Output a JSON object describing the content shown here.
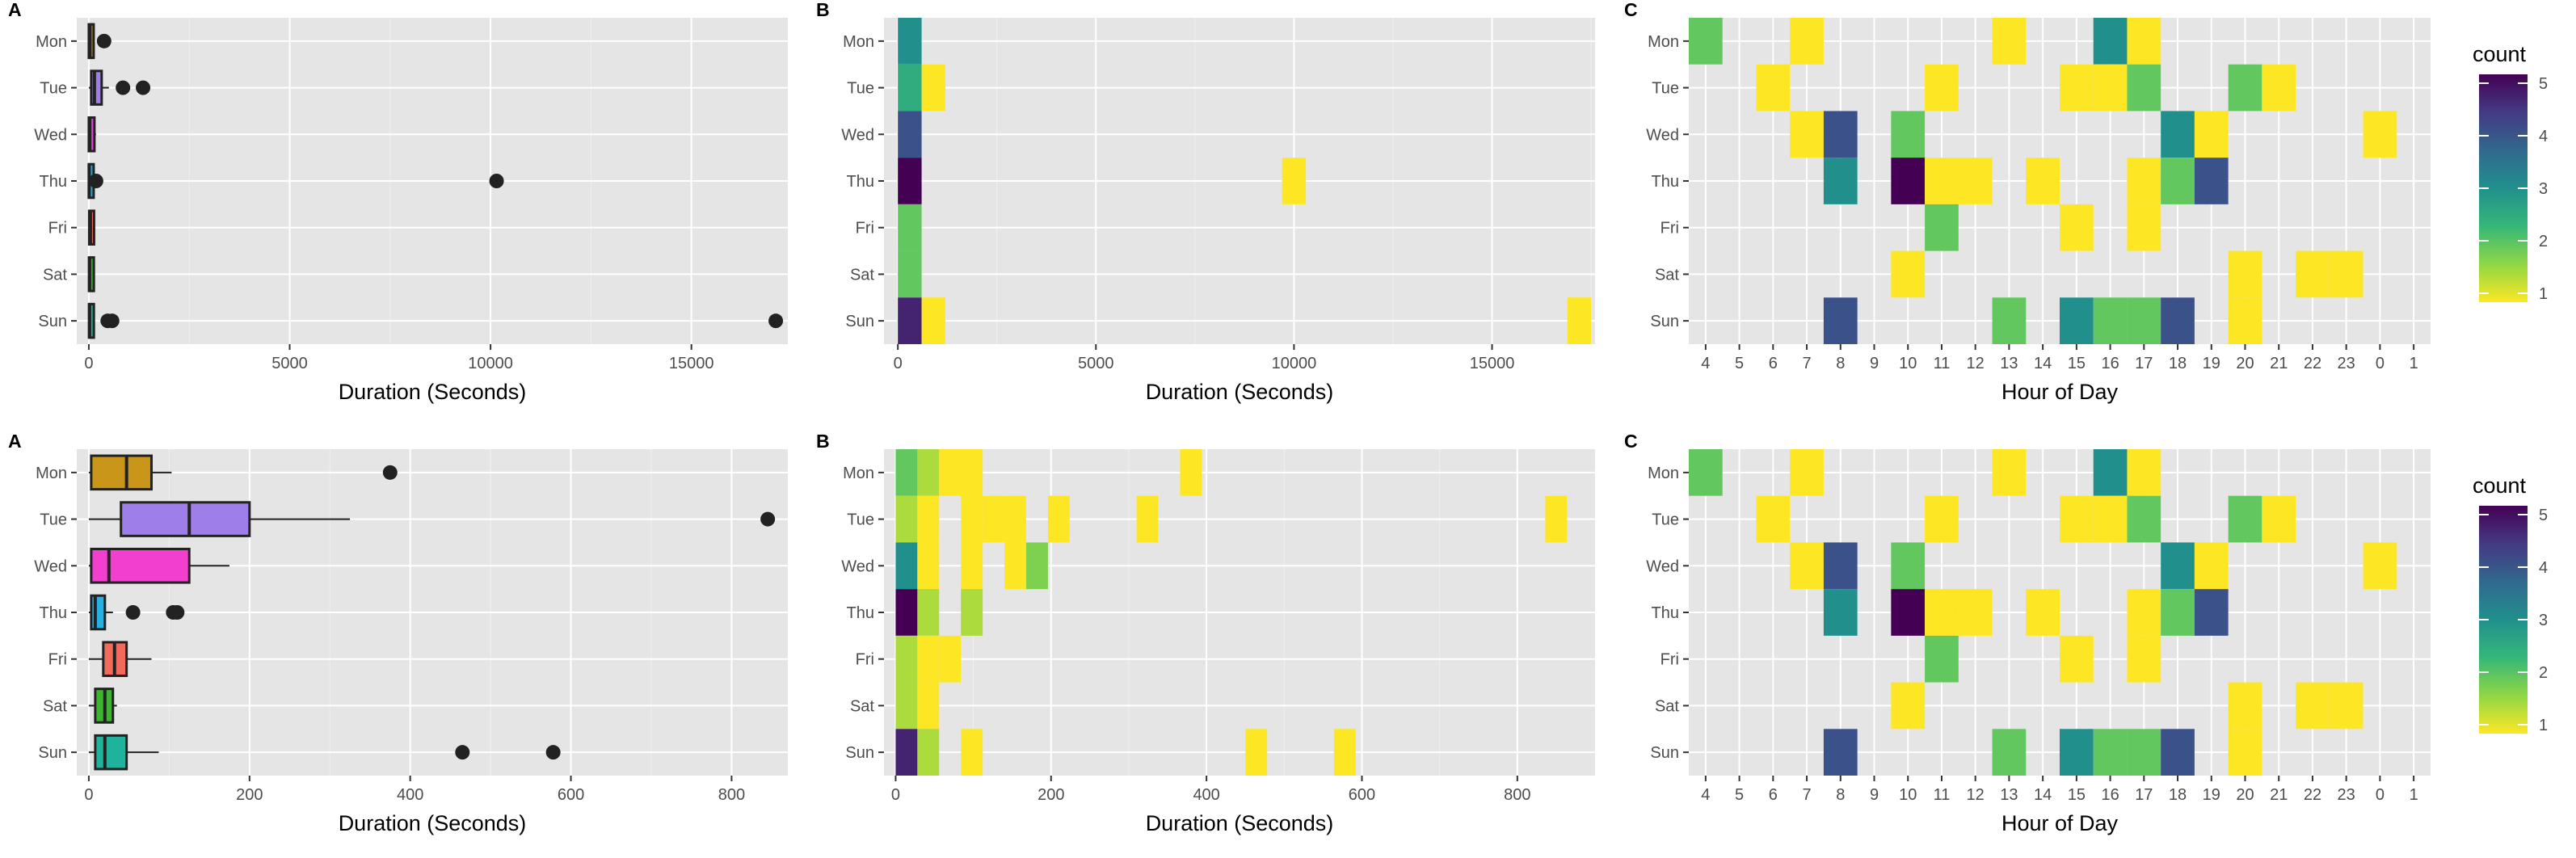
{
  "colors": {
    "panel_bg": "#e5e5e5",
    "grid_major": "#ffffff",
    "grid_minor": "#f0f0f0",
    "outlier": "#222222",
    "box_line": "#222222"
  },
  "legend": {
    "title": "count",
    "ticks": [
      1,
      2,
      3,
      4,
      5
    ],
    "colorscale": [
      "#fde725",
      "#8fd744",
      "#35b779",
      "#21908d",
      "#31688e",
      "#443a83",
      "#440154"
    ]
  },
  "chart_data": [
    {
      "id": "top-A",
      "type": "boxplot",
      "panel_tag": "A",
      "xlabel": "Duration (Seconds)",
      "ylabel": "",
      "categories": [
        "Mon",
        "Tue",
        "Wed",
        "Thu",
        "Fri",
        "Sat",
        "Sun"
      ],
      "xlim": [
        -300,
        17400
      ],
      "xticks": [
        0,
        5000,
        10000,
        15000
      ],
      "xtick_labels": [
        "0",
        "5000",
        "10000",
        "15000"
      ],
      "boxes": [
        {
          "cat": "Mon",
          "q1": 0,
          "median": 30,
          "q3": 90,
          "whisker_lo": 0,
          "whisker_hi": 120,
          "fill": "#c9961a",
          "outliers": [
            380
          ]
        },
        {
          "cat": "Tue",
          "q1": 60,
          "median": 140,
          "q3": 320,
          "whisker_lo": 0,
          "whisker_hi": 500,
          "fill": "#9e7ee8",
          "outliers": [
            850,
            1350
          ]
        },
        {
          "cat": "Wed",
          "q1": 0,
          "median": 25,
          "q3": 140,
          "whisker_lo": 0,
          "whisker_hi": 180,
          "fill": "#e83fd5",
          "outliers": []
        },
        {
          "cat": "Thu",
          "q1": 0,
          "median": 10,
          "q3": 40,
          "whisker_lo": 0,
          "whisker_hi": 60,
          "fill": "#2aa6cf",
          "outliers": [
            180,
            10150
          ]
        },
        {
          "cat": "Fri",
          "q1": 10,
          "median": 40,
          "q3": 60,
          "whisker_lo": 0,
          "whisker_hi": 90,
          "fill": "#f26a5b",
          "outliers": []
        },
        {
          "cat": "Sat",
          "q1": 5,
          "median": 20,
          "q3": 35,
          "whisker_lo": 0,
          "whisker_hi": 45,
          "fill": "#36b12b",
          "outliers": []
        },
        {
          "cat": "Sun",
          "q1": 5,
          "median": 20,
          "q3": 60,
          "whisker_lo": 0,
          "whisker_hi": 100,
          "fill": "#1cb39b",
          "outliers": [
            470,
            580,
            17100
          ]
        }
      ]
    },
    {
      "id": "top-B",
      "type": "heatmap",
      "panel_tag": "B",
      "xlabel": "Duration (Seconds)",
      "ylabel": "",
      "categories": [
        "Mon",
        "Tue",
        "Wed",
        "Thu",
        "Fri",
        "Sat",
        "Sun"
      ],
      "xlim": [
        -350,
        17600
      ],
      "xticks": [
        0,
        5000,
        10000,
        15000
      ],
      "xtick_labels": [
        "0",
        "5000",
        "10000",
        "15000"
      ],
      "binwidth": 600,
      "count_range": [
        1,
        5
      ],
      "cells": [
        {
          "day": "Mon",
          "x0": 0,
          "count": 3
        },
        {
          "day": "Tue",
          "x0": 0,
          "count": 2.5
        },
        {
          "day": "Tue",
          "x0": 600,
          "count": 1
        },
        {
          "day": "Wed",
          "x0": 0,
          "count": 4
        },
        {
          "day": "Thu",
          "x0": 0,
          "count": 5
        },
        {
          "day": "Thu",
          "x0": 9700,
          "count": 1
        },
        {
          "day": "Fri",
          "x0": 0,
          "count": 2
        },
        {
          "day": "Sat",
          "x0": 0,
          "count": 2
        },
        {
          "day": "Sun",
          "x0": 0,
          "count": 4.6
        },
        {
          "day": "Sun",
          "x0": 600,
          "count": 1
        },
        {
          "day": "Sun",
          "x0": 16900,
          "count": 1
        }
      ]
    },
    {
      "id": "top-C",
      "type": "heatmap",
      "panel_tag": "C",
      "xlabel": "Hour of Day",
      "ylabel": "",
      "categories": [
        "Mon",
        "Tue",
        "Wed",
        "Thu",
        "Fri",
        "Sat",
        "Sun"
      ],
      "hours": [
        "4",
        "5",
        "6",
        "7",
        "8",
        "9",
        "10",
        "11",
        "12",
        "13",
        "14",
        "15",
        "16",
        "17",
        "18",
        "19",
        "20",
        "21",
        "22",
        "23",
        "0",
        "1"
      ],
      "count_range": [
        1,
        5
      ],
      "cells": [
        {
          "day": "Mon",
          "hour": "4",
          "count": 2
        },
        {
          "day": "Mon",
          "hour": "7",
          "count": 1
        },
        {
          "day": "Mon",
          "hour": "13",
          "count": 1
        },
        {
          "day": "Mon",
          "hour": "16",
          "count": 3
        },
        {
          "day": "Mon",
          "hour": "17",
          "count": 1
        },
        {
          "day": "Tue",
          "hour": "6",
          "count": 1
        },
        {
          "day": "Tue",
          "hour": "11",
          "count": 1
        },
        {
          "day": "Tue",
          "hour": "15",
          "count": 1
        },
        {
          "day": "Tue",
          "hour": "16",
          "count": 1
        },
        {
          "day": "Tue",
          "hour": "17",
          "count": 2
        },
        {
          "day": "Tue",
          "hour": "20",
          "count": 2
        },
        {
          "day": "Tue",
          "hour": "21",
          "count": 1
        },
        {
          "day": "Wed",
          "hour": "7",
          "count": 1
        },
        {
          "day": "Wed",
          "hour": "8",
          "count": 4
        },
        {
          "day": "Wed",
          "hour": "10",
          "count": 2
        },
        {
          "day": "Wed",
          "hour": "18",
          "count": 3
        },
        {
          "day": "Wed",
          "hour": "19",
          "count": 1
        },
        {
          "day": "Wed",
          "hour": "0",
          "count": 1
        },
        {
          "day": "Thu",
          "hour": "8",
          "count": 3
        },
        {
          "day": "Thu",
          "hour": "10",
          "count": 5
        },
        {
          "day": "Thu",
          "hour": "11",
          "count": 1
        },
        {
          "day": "Thu",
          "hour": "12",
          "count": 1
        },
        {
          "day": "Thu",
          "hour": "14",
          "count": 1
        },
        {
          "day": "Thu",
          "hour": "17",
          "count": 1
        },
        {
          "day": "Thu",
          "hour": "18",
          "count": 2
        },
        {
          "day": "Thu",
          "hour": "19",
          "count": 4
        },
        {
          "day": "Fri",
          "hour": "11",
          "count": 2
        },
        {
          "day": "Fri",
          "hour": "15",
          "count": 1
        },
        {
          "day": "Fri",
          "hour": "17",
          "count": 1
        },
        {
          "day": "Sat",
          "hour": "10",
          "count": 1
        },
        {
          "day": "Sat",
          "hour": "20",
          "count": 1
        },
        {
          "day": "Sat",
          "hour": "22",
          "count": 1
        },
        {
          "day": "Sat",
          "hour": "23",
          "count": 1
        },
        {
          "day": "Sun",
          "hour": "8",
          "count": 4
        },
        {
          "day": "Sun",
          "hour": "13",
          "count": 2
        },
        {
          "day": "Sun",
          "hour": "15",
          "count": 3
        },
        {
          "day": "Sun",
          "hour": "16",
          "count": 2
        },
        {
          "day": "Sun",
          "hour": "17",
          "count": 2
        },
        {
          "day": "Sun",
          "hour": "18",
          "count": 4
        },
        {
          "day": "Sun",
          "hour": "20",
          "count": 1
        }
      ]
    },
    {
      "id": "bottom-A",
      "type": "boxplot",
      "panel_tag": "A",
      "xlabel": "Duration (Seconds)",
      "ylabel": "",
      "categories": [
        "Mon",
        "Tue",
        "Wed",
        "Thu",
        "Fri",
        "Sat",
        "Sun"
      ],
      "xlim": [
        -15,
        870
      ],
      "xticks": [
        0,
        200,
        400,
        600,
        800
      ],
      "xtick_labels": [
        "0",
        "200",
        "400",
        "600",
        "800"
      ],
      "boxes": [
        {
          "cat": "Mon",
          "q1": 3,
          "median": 47,
          "q3": 78,
          "whisker_lo": 0,
          "whisker_hi": 103,
          "fill": "#c9961a",
          "outliers": [
            375
          ]
        },
        {
          "cat": "Tue",
          "q1": 40,
          "median": 125,
          "q3": 200,
          "whisker_lo": 0,
          "whisker_hi": 325,
          "fill": "#9e7ee8",
          "outliers": [
            845
          ]
        },
        {
          "cat": "Wed",
          "q1": 3,
          "median": 25,
          "q3": 125,
          "whisker_lo": 0,
          "whisker_hi": 175,
          "fill": "#f23fd0",
          "outliers": []
        },
        {
          "cat": "Thu",
          "q1": 3,
          "median": 8,
          "q3": 20,
          "whisker_lo": 0,
          "whisker_hi": 30,
          "fill": "#23b2e3",
          "outliers": [
            55,
            105,
            110
          ]
        },
        {
          "cat": "Fri",
          "q1": 18,
          "median": 32,
          "q3": 47,
          "whisker_lo": 0,
          "whisker_hi": 78,
          "fill": "#f26a5b",
          "outliers": []
        },
        {
          "cat": "Sat",
          "q1": 8,
          "median": 20,
          "q3": 30,
          "whisker_lo": 0,
          "whisker_hi": 35,
          "fill": "#3cb52f",
          "outliers": []
        },
        {
          "cat": "Sun",
          "q1": 8,
          "median": 20,
          "q3": 47,
          "whisker_lo": 0,
          "whisker_hi": 87,
          "fill": "#1eb39a",
          "outliers": [
            465,
            578
          ]
        }
      ]
    },
    {
      "id": "bottom-B",
      "type": "heatmap",
      "panel_tag": "B",
      "xlabel": "Duration (Seconds)",
      "ylabel": "",
      "categories": [
        "Mon",
        "Tue",
        "Wed",
        "Thu",
        "Fri",
        "Sat",
        "Sun"
      ],
      "xlim": [
        -15,
        900
      ],
      "xticks": [
        0,
        200,
        400,
        600,
        800
      ],
      "xtick_labels": [
        "0",
        "200",
        "400",
        "600",
        "800"
      ],
      "binwidth": 28,
      "count_range": [
        1,
        5
      ],
      "cells": [
        {
          "day": "Mon",
          "x0": 0,
          "count": 2
        },
        {
          "day": "Mon",
          "x0": 28,
          "count": 1.5
        },
        {
          "day": "Mon",
          "x0": 56,
          "count": 1
        },
        {
          "day": "Mon",
          "x0": 84,
          "count": 1
        },
        {
          "day": "Mon",
          "x0": 366,
          "count": 1
        },
        {
          "day": "Tue",
          "x0": 0,
          "count": 1.5
        },
        {
          "day": "Tue",
          "x0": 28,
          "count": 1
        },
        {
          "day": "Tue",
          "x0": 84,
          "count": 1
        },
        {
          "day": "Tue",
          "x0": 112,
          "count": 1
        },
        {
          "day": "Tue",
          "x0": 140,
          "count": 1
        },
        {
          "day": "Tue",
          "x0": 196,
          "count": 1
        },
        {
          "day": "Tue",
          "x0": 310,
          "count": 1
        },
        {
          "day": "Tue",
          "x0": 836,
          "count": 1
        },
        {
          "day": "Wed",
          "x0": 0,
          "count": 3
        },
        {
          "day": "Wed",
          "x0": 28,
          "count": 1
        },
        {
          "day": "Wed",
          "x0": 84,
          "count": 1
        },
        {
          "day": "Wed",
          "x0": 140,
          "count": 1
        },
        {
          "day": "Wed",
          "x0": 168,
          "count": 1.8
        },
        {
          "day": "Thu",
          "x0": 0,
          "count": 5
        },
        {
          "day": "Thu",
          "x0": 28,
          "count": 1.5
        },
        {
          "day": "Thu",
          "x0": 84,
          "count": 1.5
        },
        {
          "day": "Fri",
          "x0": 0,
          "count": 1.5
        },
        {
          "day": "Fri",
          "x0": 28,
          "count": 1
        },
        {
          "day": "Fri",
          "x0": 56,
          "count": 1
        },
        {
          "day": "Sat",
          "x0": 0,
          "count": 1.5
        },
        {
          "day": "Sat",
          "x0": 28,
          "count": 1
        },
        {
          "day": "Sun",
          "x0": 0,
          "count": 4.6
        },
        {
          "day": "Sun",
          "x0": 28,
          "count": 1.5
        },
        {
          "day": "Sun",
          "x0": 84,
          "count": 1
        },
        {
          "day": "Sun",
          "x0": 450,
          "count": 1
        },
        {
          "day": "Sun",
          "x0": 564,
          "count": 1
        }
      ]
    },
    {
      "id": "bottom-C",
      "type": "heatmap",
      "panel_tag": "C",
      "xlabel": "Hour of Day",
      "ylabel": "",
      "categories": [
        "Mon",
        "Tue",
        "Wed",
        "Thu",
        "Fri",
        "Sat",
        "Sun"
      ],
      "hours": [
        "4",
        "5",
        "6",
        "7",
        "8",
        "9",
        "10",
        "11",
        "12",
        "13",
        "14",
        "15",
        "16",
        "17",
        "18",
        "19",
        "20",
        "21",
        "22",
        "23",
        "0",
        "1"
      ],
      "count_range": [
        1,
        5
      ],
      "cells": [
        {
          "day": "Mon",
          "hour": "4",
          "count": 2
        },
        {
          "day": "Mon",
          "hour": "7",
          "count": 1
        },
        {
          "day": "Mon",
          "hour": "13",
          "count": 1
        },
        {
          "day": "Mon",
          "hour": "16",
          "count": 3
        },
        {
          "day": "Mon",
          "hour": "17",
          "count": 1
        },
        {
          "day": "Tue",
          "hour": "6",
          "count": 1
        },
        {
          "day": "Tue",
          "hour": "11",
          "count": 1
        },
        {
          "day": "Tue",
          "hour": "15",
          "count": 1
        },
        {
          "day": "Tue",
          "hour": "16",
          "count": 1
        },
        {
          "day": "Tue",
          "hour": "17",
          "count": 2
        },
        {
          "day": "Tue",
          "hour": "20",
          "count": 2
        },
        {
          "day": "Tue",
          "hour": "21",
          "count": 1
        },
        {
          "day": "Wed",
          "hour": "7",
          "count": 1
        },
        {
          "day": "Wed",
          "hour": "8",
          "count": 4
        },
        {
          "day": "Wed",
          "hour": "10",
          "count": 2
        },
        {
          "day": "Wed",
          "hour": "18",
          "count": 3
        },
        {
          "day": "Wed",
          "hour": "19",
          "count": 1
        },
        {
          "day": "Wed",
          "hour": "0",
          "count": 1
        },
        {
          "day": "Thu",
          "hour": "8",
          "count": 3
        },
        {
          "day": "Thu",
          "hour": "10",
          "count": 5
        },
        {
          "day": "Thu",
          "hour": "11",
          "count": 1
        },
        {
          "day": "Thu",
          "hour": "12",
          "count": 1
        },
        {
          "day": "Thu",
          "hour": "14",
          "count": 1
        },
        {
          "day": "Thu",
          "hour": "17",
          "count": 1
        },
        {
          "day": "Thu",
          "hour": "18",
          "count": 2
        },
        {
          "day": "Thu",
          "hour": "19",
          "count": 4
        },
        {
          "day": "Fri",
          "hour": "11",
          "count": 2
        },
        {
          "day": "Fri",
          "hour": "15",
          "count": 1
        },
        {
          "day": "Fri",
          "hour": "17",
          "count": 1
        },
        {
          "day": "Sat",
          "hour": "10",
          "count": 1
        },
        {
          "day": "Sat",
          "hour": "20",
          "count": 1
        },
        {
          "day": "Sat",
          "hour": "22",
          "count": 1
        },
        {
          "day": "Sat",
          "hour": "23",
          "count": 1
        },
        {
          "day": "Sun",
          "hour": "8",
          "count": 4
        },
        {
          "day": "Sun",
          "hour": "13",
          "count": 2
        },
        {
          "day": "Sun",
          "hour": "15",
          "count": 3
        },
        {
          "day": "Sun",
          "hour": "16",
          "count": 2
        },
        {
          "day": "Sun",
          "hour": "17",
          "count": 2
        },
        {
          "day": "Sun",
          "hour": "18",
          "count": 4
        },
        {
          "day": "Sun",
          "hour": "20",
          "count": 1
        }
      ]
    }
  ]
}
